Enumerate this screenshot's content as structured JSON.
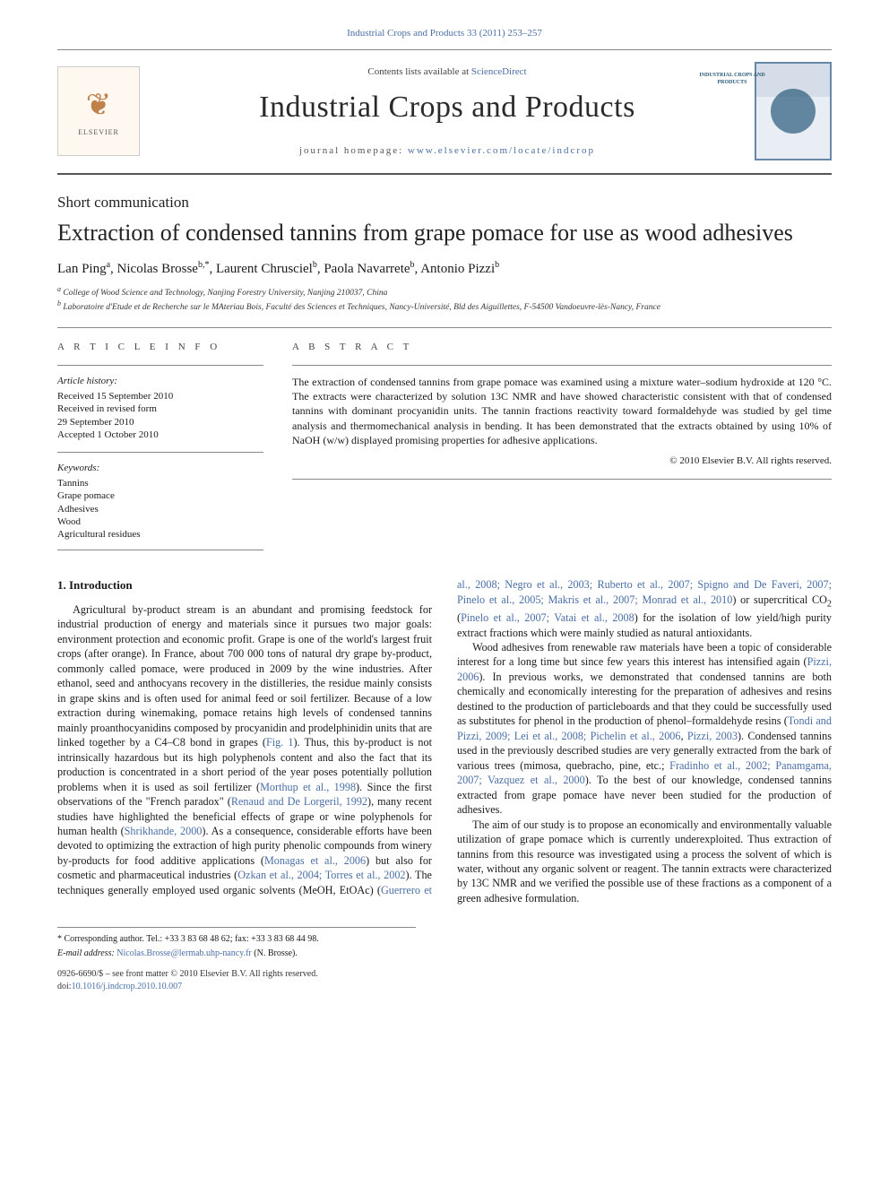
{
  "meta": {
    "top_citation": "Industrial Crops and Products 33 (2011) 253–257",
    "contents_line_prefix": "Contents lists available at ",
    "contents_line_link": "ScienceDirect",
    "journal_title": "Industrial Crops and Products",
    "homepage_prefix": "journal homepage: ",
    "homepage_url": "www.elsevier.com/locate/indcrop",
    "elsevier_label": "ELSEVIER",
    "cover_label": "INDUSTRIAL CROPS AND PRODUCTS"
  },
  "article": {
    "section_label": "Short communication",
    "title": "Extraction of condensed tannins from grape pomace for use as wood adhesives",
    "authors_html": "Lan Ping<sup>a</sup>, Nicolas Brosse<sup>b,*</sup>, Laurent Chrusciel<sup>b</sup>, Paola Navarrete<sup>b</sup>, Antonio Pizzi<sup>b</sup>",
    "affil_a": "a College of Wood Science and Technology, Nanjing Forestry University, Nanjing 210037, China",
    "affil_b": "b Laboratoire d'Etude et de Recherche sur le MAteriau Bois, Faculté des Sciences et Techniques, Nancy-Université, Bld des Aiguillettes, F-54500 Vandoeuvre-lès-Nancy, France"
  },
  "info": {
    "head": "A R T I C L E  I N F O",
    "history_label": "Article history:",
    "history": "Received 15 September 2010\nReceived in revised form\n29 September 2010\nAccepted 1 October 2010",
    "keywords_label": "Keywords:",
    "keywords": "Tannins\nGrape pomace\nAdhesives\nWood\nAgricultural residues"
  },
  "abstract": {
    "head": "A B S T R A C T",
    "text": "The extraction of condensed tannins from grape pomace was examined using a mixture water–sodium hydroxide at 120 °C. The extracts were characterized by solution 13C NMR and have showed characteristic consistent with that of condensed tannins with dominant procyanidin units. The tannin fractions reactivity toward formaldehyde was studied by gel time analysis and thermomechanical analysis in bending. It has been demonstrated that the extracts obtained by using 10% of NaOH (w/w) displayed promising properties for adhesive applications.",
    "copyright": "© 2010 Elsevier B.V. All rights reserved."
  },
  "body": {
    "intro_head": "1.  Introduction",
    "p1a": "Agricultural by-product stream is an abundant and promising feedstock for industrial production of energy and materials since it pursues two major goals: environment protection and economic profit. Grape is one of the world's largest fruit crops (after orange). In France, about 700 000 tons of natural dry grape by-product, commonly called pomace, were produced in 2009 by the wine industries. After ethanol, seed and anthocyans recovery in the distilleries, the residue mainly consists in grape skins and is often used for animal feed or soil fertilizer. Because of a low extraction during winemaking, pomace retains high levels of condensed tannins mainly proanthocyanidins composed by procyanidin and prodelphinidin units that are linked together by a C4–C8 bond in grapes (",
    "fig1": "Fig. 1",
    "p1b": "). Thus, this by-product is not intrinsically hazardous but its high polyphenols content and also the fact that its production is concentrated in a short period of the year poses potentially pollution problems when it is used as soil fertilizer (",
    "ref1": "Morthup et al., 1998",
    "p1c": "). Since the first observations of the \"French paradox\" (",
    "ref2": "Renaud and De Lorgeril, 1992",
    "p1d": "), many recent studies have highlighted the beneficial effects of grape or wine polyphenols for human health (",
    "ref3": "Shrikhande, 2000",
    "p1e": "). As a consequence, considerable efforts have been devoted to optimizing the extraction of high purity phenolic compounds from winery by-products for food additive applications (",
    "ref4": "Monagas et al., 2006",
    "p1f": ") but also for cosmetic and pharmaceutical industries (",
    "ref5": "Ozkan et al., 2004; Torres et al., 2002",
    "p1g": "). The techniques generally employed used organic solvents (MeOH, EtOAc) (",
    "ref6": "Guerrero et al., 2008; Negro et al., 2003; Ruberto et al., 2007; Spigno and De Faveri, 2007; Pinelo et al., 2005; Makris et al., 2007; Monrad et al., 2010",
    "p1h": ") or supercritical CO",
    "sub2": "2",
    "p1i": " (",
    "ref7": "Pinelo et al., 2007; Vatai et al., 2008",
    "p1j": ") for the isolation of low yield/high purity extract fractions which were mainly studied as natural antioxidants.",
    "p2a": "Wood adhesives from renewable raw materials have been a topic of considerable interest for a long time but since few years this interest has intensified again (",
    "ref8": "Pizzi, 2006",
    "p2b": "). In previous works, we demonstrated that condensed tannins are both chemically and economically interesting for the preparation of adhesives and resins destined to the production of particleboards and that they could be successfully used as substitutes for phenol in the production of phenol–formaldehyde resins (",
    "ref9": "Tondi and Pizzi, 2009; Lei et al., 2008; Pichelin et al., 2006",
    "p2c": ", ",
    "ref10": "Pizzi, 2003",
    "p2d": "). Condensed tannins used in the previously described studies are very generally extracted from the bark of various trees (mimosa, quebracho, pine, etc.; ",
    "ref11": "Fradinho et al., 2002; Panamgama, 2007; Vazquez et al., 2000",
    "p2e": "). To the best of our knowledge, condensed tannins extracted from grape pomace have never been studied for the production of adhesives.",
    "p3": "The aim of our study is to propose an economically and environmentally valuable utilization of grape pomace which is currently underexploited. Thus extraction of tannins from this resource was investigated using a process the solvent of which is water, without any organic solvent or reagent. The tannin extracts were characterized by 13C NMR and we verified the possible use of these fractions as a component of a green adhesive formulation."
  },
  "footer": {
    "corr": "* Corresponding author. Tel.: +33 3 83 68 48 62; fax: +33 3 83 68 44 98.",
    "email_label": "E-mail address: ",
    "email": "Nicolas.Brosse@lermab.uhp-nancy.fr",
    "email_suffix": " (N. Brosse).",
    "issn": "0926-6690/$ – see front matter © 2010 Elsevier B.V. All rights reserved.",
    "doi_prefix": "doi:",
    "doi": "10.1016/j.indcrop.2010.10.007"
  },
  "colors": {
    "link": "#4a6fa5",
    "text": "#1a1a1a",
    "border": "#888888"
  }
}
